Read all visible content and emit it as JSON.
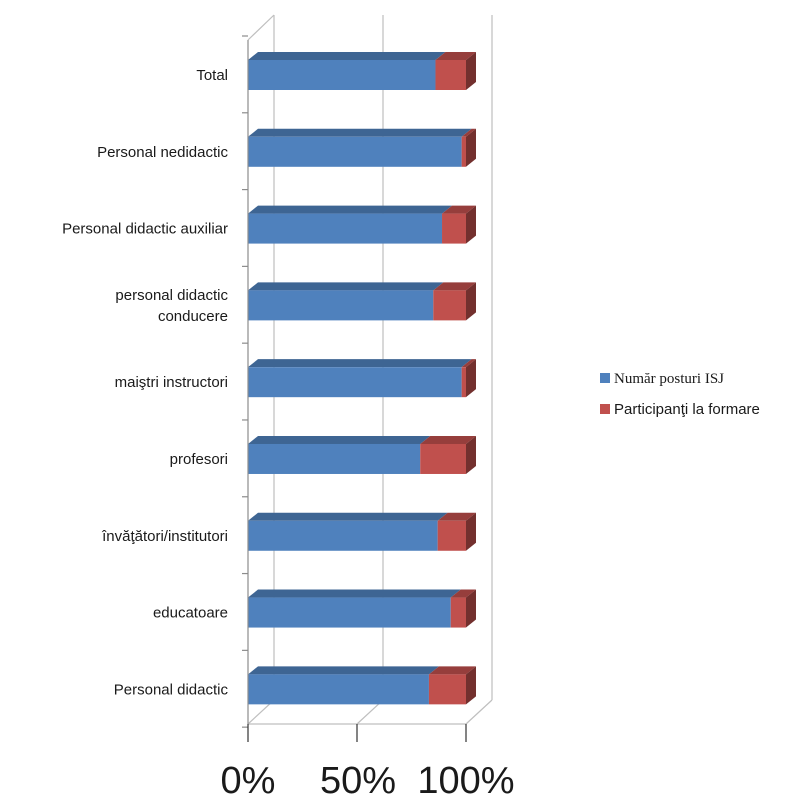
{
  "chart_data": {
    "type": "bar",
    "orientation": "horizontal",
    "stacked": "percent",
    "style": "3d",
    "categories": [
      "Total",
      "Personal nedidactic",
      "Personal didactic auxiliar",
      "personal didactic conducere",
      "maiştri instructori",
      "profesori",
      "învăţători/institutori",
      "educatoare",
      "Personal didactic"
    ],
    "series": [
      {
        "name": "Număr posturi ISJ",
        "color": "#4f81bd",
        "values": [
          86,
          98,
          89,
          85,
          98,
          79,
          87,
          93,
          83
        ]
      },
      {
        "name": "Participanţi la formare",
        "color": "#c0504d",
        "values": [
          14,
          2,
          11,
          15,
          2,
          21,
          13,
          7,
          17
        ]
      }
    ],
    "x_ticks": [
      "0%",
      "50%",
      "100%"
    ],
    "xlim": [
      0,
      100
    ],
    "grid": true,
    "legend_position": "right"
  }
}
